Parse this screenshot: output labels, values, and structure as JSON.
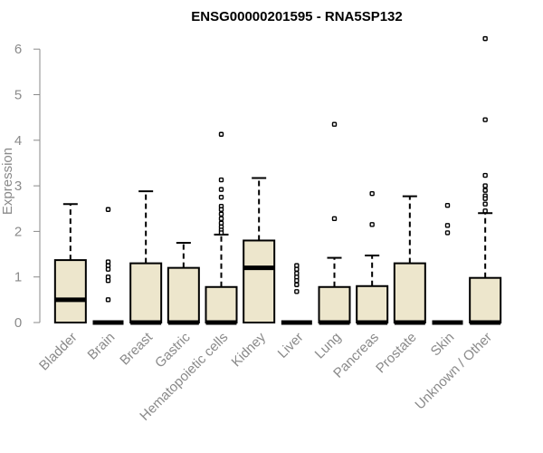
{
  "chart_data": {
    "type": "box",
    "title": "ENSG00000201595 - RNA5SP132",
    "xlabel": "",
    "ylabel": "Expression",
    "ylim": [
      0,
      6.25
    ],
    "yticks": [
      0,
      1,
      2,
      3,
      4,
      5,
      6
    ],
    "grid": false,
    "box_fill": "#ede6cc",
    "axis_color": "#8a8a8a",
    "categories": [
      "Bladder",
      "Brain",
      "Breast",
      "Gastric",
      "Hematopoietic cells",
      "Kidney",
      "Liver",
      "Lung",
      "Pancreas",
      "Prostate",
      "Skin",
      "Unknown / Other"
    ],
    "boxes": [
      {
        "q1": 0,
        "median": 0.5,
        "q3": 1.37,
        "whisker_low": 0,
        "whisker_high": 2.6,
        "outliers": []
      },
      {
        "q1": 0,
        "median": 0,
        "q3": 0,
        "whisker_low": 0,
        "whisker_high": 0,
        "outliers": [
          2.48,
          1.33,
          1.25,
          1.17,
          1.0,
          0.92,
          0.5
        ]
      },
      {
        "q1": 0,
        "median": 0,
        "q3": 1.3,
        "whisker_low": 0,
        "whisker_high": 2.88,
        "outliers": []
      },
      {
        "q1": 0,
        "median": 0,
        "q3": 1.2,
        "whisker_low": 0,
        "whisker_high": 1.75,
        "outliers": []
      },
      {
        "q1": 0,
        "median": 0,
        "q3": 0.78,
        "whisker_low": 0,
        "whisker_high": 1.93,
        "outliers": [
          4.13,
          3.13,
          2.92,
          2.75,
          2.55,
          2.48,
          2.38,
          2.28,
          2.18,
          2.1,
          2.03,
          1.97
        ]
      },
      {
        "q1": 0,
        "median": 1.2,
        "q3": 1.8,
        "whisker_low": 0,
        "whisker_high": 3.17,
        "outliers": []
      },
      {
        "q1": 0,
        "median": 0,
        "q3": 0,
        "whisker_low": 0,
        "whisker_high": 0,
        "outliers": [
          1.25,
          1.17,
          1.08,
          1.0,
          0.92,
          0.83,
          0.68
        ]
      },
      {
        "q1": 0,
        "median": 0,
        "q3": 0.78,
        "whisker_low": 0,
        "whisker_high": 1.42,
        "outliers": [
          4.35,
          2.28
        ]
      },
      {
        "q1": 0,
        "median": 0,
        "q3": 0.8,
        "whisker_low": 0,
        "whisker_high": 1.47,
        "outliers": [
          2.83,
          2.15
        ]
      },
      {
        "q1": 0,
        "median": 0,
        "q3": 1.3,
        "whisker_low": 0,
        "whisker_high": 2.77,
        "outliers": []
      },
      {
        "q1": 0,
        "median": 0,
        "q3": 0,
        "whisker_low": 0,
        "whisker_high": 0,
        "outliers": [
          2.57,
          2.13,
          1.97
        ]
      },
      {
        "q1": 0,
        "median": 0,
        "q3": 0.98,
        "whisker_low": 0,
        "whisker_high": 2.4,
        "outliers": [
          6.23,
          4.45,
          3.23,
          3.0,
          2.9,
          2.78,
          2.72,
          2.6,
          2.45
        ]
      }
    ]
  }
}
